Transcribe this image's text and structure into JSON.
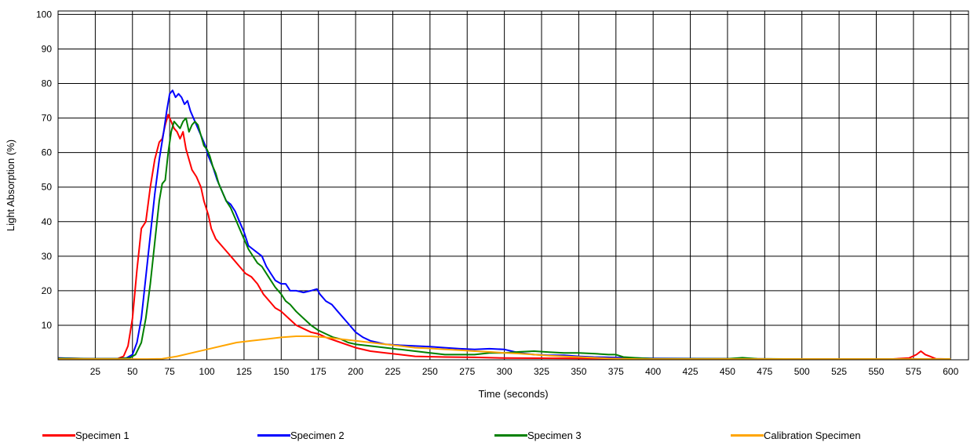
{
  "chart_data": {
    "type": "line",
    "title": "",
    "xlabel": "Time (seconds)",
    "ylabel": "Light Absorption (%)",
    "xlim": [
      0,
      612
    ],
    "ylim": [
      0,
      101
    ],
    "x_ticks": [
      25,
      50,
      75,
      100,
      125,
      150,
      175,
      200,
      225,
      250,
      275,
      300,
      325,
      350,
      375,
      400,
      425,
      450,
      475,
      500,
      525,
      550,
      575,
      600
    ],
    "y_ticks": [
      10,
      20,
      30,
      40,
      50,
      60,
      70,
      80,
      90,
      100
    ],
    "grid": true,
    "legend_position": "bottom",
    "series": [
      {
        "name": "Specimen 1",
        "color": "#ff0000",
        "points": [
          [
            0,
            0.5
          ],
          [
            10,
            0.4
          ],
          [
            25,
            0.3
          ],
          [
            40,
            0.3
          ],
          [
            44,
            1
          ],
          [
            47,
            4
          ],
          [
            50,
            12
          ],
          [
            53,
            26
          ],
          [
            56,
            38
          ],
          [
            59,
            40
          ],
          [
            62,
            50
          ],
          [
            65,
            58
          ],
          [
            68,
            63
          ],
          [
            70,
            64
          ],
          [
            72,
            68
          ],
          [
            74,
            71
          ],
          [
            76,
            69
          ],
          [
            78,
            67
          ],
          [
            80,
            66
          ],
          [
            82,
            64
          ],
          [
            84,
            66
          ],
          [
            86,
            61
          ],
          [
            88,
            58
          ],
          [
            90,
            55
          ],
          [
            93,
            53
          ],
          [
            96,
            50
          ],
          [
            98,
            46
          ],
          [
            101,
            42
          ],
          [
            103,
            38
          ],
          [
            106,
            35
          ],
          [
            110,
            33
          ],
          [
            114,
            31
          ],
          [
            118,
            29
          ],
          [
            122,
            27
          ],
          [
            126,
            25
          ],
          [
            130,
            24
          ],
          [
            134,
            22
          ],
          [
            138,
            19
          ],
          [
            142,
            17
          ],
          [
            146,
            15
          ],
          [
            150,
            14
          ],
          [
            155,
            12
          ],
          [
            160,
            10
          ],
          [
            165,
            9
          ],
          [
            170,
            8
          ],
          [
            175,
            7.5
          ],
          [
            180,
            6.5
          ],
          [
            190,
            5
          ],
          [
            200,
            3.5
          ],
          [
            210,
            2.5
          ],
          [
            220,
            2
          ],
          [
            230,
            1.5
          ],
          [
            240,
            1
          ],
          [
            260,
            0.8
          ],
          [
            280,
            0.7
          ],
          [
            300,
            0.5
          ],
          [
            350,
            0.4
          ],
          [
            400,
            0.3
          ],
          [
            450,
            0.3
          ],
          [
            500,
            0.2
          ],
          [
            560,
            0.2
          ],
          [
            572,
            0.5
          ],
          [
            577,
            1.5
          ],
          [
            580,
            2.5
          ],
          [
            583,
            1.5
          ],
          [
            586,
            1
          ],
          [
            590,
            0.3
          ],
          [
            600,
            0.2
          ]
        ]
      },
      {
        "name": "Specimen 2",
        "color": "#0000ff",
        "points": [
          [
            0,
            0.5
          ],
          [
            20,
            0.3
          ],
          [
            40,
            0.3
          ],
          [
            46,
            0.5
          ],
          [
            50,
            1.5
          ],
          [
            53,
            5
          ],
          [
            56,
            12
          ],
          [
            59,
            24
          ],
          [
            62,
            36
          ],
          [
            65,
            48
          ],
          [
            68,
            58
          ],
          [
            71,
            66
          ],
          [
            73,
            72
          ],
          [
            75,
            77
          ],
          [
            77,
            78
          ],
          [
            79,
            76
          ],
          [
            81,
            77
          ],
          [
            83,
            76
          ],
          [
            85,
            74
          ],
          [
            87,
            75
          ],
          [
            89,
            72
          ],
          [
            91,
            70
          ],
          [
            93,
            68
          ],
          [
            95,
            66
          ],
          [
            97,
            64
          ],
          [
            99,
            62
          ],
          [
            101,
            59
          ],
          [
            104,
            56
          ],
          [
            107,
            52
          ],
          [
            110,
            49
          ],
          [
            113,
            46
          ],
          [
            116,
            45
          ],
          [
            119,
            43
          ],
          [
            122,
            40
          ],
          [
            125,
            37
          ],
          [
            128,
            33
          ],
          [
            131,
            32
          ],
          [
            134,
            31
          ],
          [
            137,
            30
          ],
          [
            140,
            27
          ],
          [
            143,
            25
          ],
          [
            146,
            23
          ],
          [
            150,
            22
          ],
          [
            153,
            22
          ],
          [
            156,
            20
          ],
          [
            160,
            20
          ],
          [
            165,
            19.5
          ],
          [
            170,
            20
          ],
          [
            174,
            20.5
          ],
          [
            176,
            19
          ],
          [
            180,
            17
          ],
          [
            184,
            16
          ],
          [
            188,
            14
          ],
          [
            192,
            12
          ],
          [
            196,
            10
          ],
          [
            200,
            8
          ],
          [
            205,
            6.5
          ],
          [
            210,
            5.5
          ],
          [
            215,
            5
          ],
          [
            220,
            4.5
          ],
          [
            230,
            4.2
          ],
          [
            240,
            4
          ],
          [
            250,
            3.8
          ],
          [
            260,
            3.5
          ],
          [
            270,
            3.2
          ],
          [
            280,
            3
          ],
          [
            290,
            3.2
          ],
          [
            300,
            3
          ],
          [
            310,
            2
          ],
          [
            320,
            1.5
          ],
          [
            330,
            1.3
          ],
          [
            340,
            1.3
          ],
          [
            350,
            1
          ],
          [
            360,
            0.8
          ],
          [
            380,
            0.6
          ],
          [
            400,
            0.4
          ],
          [
            450,
            0.3
          ],
          [
            500,
            0.2
          ],
          [
            550,
            0.2
          ],
          [
            600,
            0.2
          ]
        ]
      },
      {
        "name": "Specimen 3",
        "color": "#008000",
        "points": [
          [
            0,
            0.4
          ],
          [
            20,
            0.3
          ],
          [
            40,
            0.3
          ],
          [
            48,
            0.5
          ],
          [
            52,
            1.5
          ],
          [
            56,
            5
          ],
          [
            59,
            12
          ],
          [
            62,
            22
          ],
          [
            65,
            34
          ],
          [
            68,
            46
          ],
          [
            70,
            51
          ],
          [
            72,
            52
          ],
          [
            74,
            60
          ],
          [
            76,
            66
          ],
          [
            78,
            69
          ],
          [
            80,
            68
          ],
          [
            82,
            67
          ],
          [
            84,
            69
          ],
          [
            86,
            70
          ],
          [
            88,
            66
          ],
          [
            90,
            68
          ],
          [
            92,
            69
          ],
          [
            94,
            68
          ],
          [
            96,
            65
          ],
          [
            98,
            62
          ],
          [
            100,
            61
          ],
          [
            102,
            59
          ],
          [
            104,
            56
          ],
          [
            106,
            54
          ],
          [
            108,
            51
          ],
          [
            110,
            49
          ],
          [
            113,
            46
          ],
          [
            116,
            44
          ],
          [
            119,
            41
          ],
          [
            122,
            38
          ],
          [
            125,
            35
          ],
          [
            128,
            32
          ],
          [
            131,
            30
          ],
          [
            134,
            28
          ],
          [
            137,
            27
          ],
          [
            140,
            25
          ],
          [
            143,
            23
          ],
          [
            146,
            21
          ],
          [
            150,
            19
          ],
          [
            153,
            17
          ],
          [
            156,
            16
          ],
          [
            160,
            14
          ],
          [
            165,
            12
          ],
          [
            170,
            10
          ],
          [
            175,
            8.5
          ],
          [
            180,
            7.5
          ],
          [
            185,
            6.5
          ],
          [
            190,
            6
          ],
          [
            195,
            5
          ],
          [
            200,
            4.5
          ],
          [
            210,
            4
          ],
          [
            220,
            3.5
          ],
          [
            230,
            3
          ],
          [
            240,
            2.5
          ],
          [
            250,
            2
          ],
          [
            260,
            1.5
          ],
          [
            270,
            1.5
          ],
          [
            280,
            1.5
          ],
          [
            290,
            2
          ],
          [
            300,
            2
          ],
          [
            310,
            2.3
          ],
          [
            320,
            2.5
          ],
          [
            330,
            2.2
          ],
          [
            340,
            2
          ],
          [
            350,
            2
          ],
          [
            360,
            1.8
          ],
          [
            370,
            1.5
          ],
          [
            375,
            1.5
          ],
          [
            380,
            0.8
          ],
          [
            390,
            0.5
          ],
          [
            400,
            0.3
          ],
          [
            450,
            0.3
          ],
          [
            460,
            0.6
          ],
          [
            470,
            0.3
          ],
          [
            500,
            0.2
          ],
          [
            550,
            0.2
          ],
          [
            600,
            0.2
          ]
        ]
      },
      {
        "name": "Calibration Specimen",
        "color": "#ffa500",
        "points": [
          [
            0,
            0.2
          ],
          [
            40,
            0.2
          ],
          [
            60,
            0.2
          ],
          [
            70,
            0.3
          ],
          [
            80,
            1
          ],
          [
            90,
            2
          ],
          [
            100,
            3
          ],
          [
            110,
            4
          ],
          [
            120,
            5
          ],
          [
            130,
            5.5
          ],
          [
            140,
            6
          ],
          [
            150,
            6.5
          ],
          [
            160,
            6.8
          ],
          [
            170,
            6.8
          ],
          [
            180,
            6.5
          ],
          [
            190,
            6
          ],
          [
            200,
            5.5
          ],
          [
            210,
            5
          ],
          [
            220,
            4.5
          ],
          [
            230,
            4
          ],
          [
            240,
            3.5
          ],
          [
            250,
            3.3
          ],
          [
            260,
            3
          ],
          [
            270,
            2.8
          ],
          [
            280,
            2.5
          ],
          [
            290,
            2.3
          ],
          [
            300,
            2
          ],
          [
            310,
            1.8
          ],
          [
            320,
            1.5
          ],
          [
            330,
            1.2
          ],
          [
            340,
            1
          ],
          [
            350,
            0.8
          ],
          [
            360,
            0.6
          ],
          [
            370,
            0.4
          ],
          [
            380,
            0.3
          ],
          [
            390,
            0.2
          ],
          [
            400,
            0.2
          ],
          [
            450,
            0.2
          ],
          [
            500,
            0.2
          ],
          [
            600,
            0.2
          ]
        ]
      }
    ]
  }
}
